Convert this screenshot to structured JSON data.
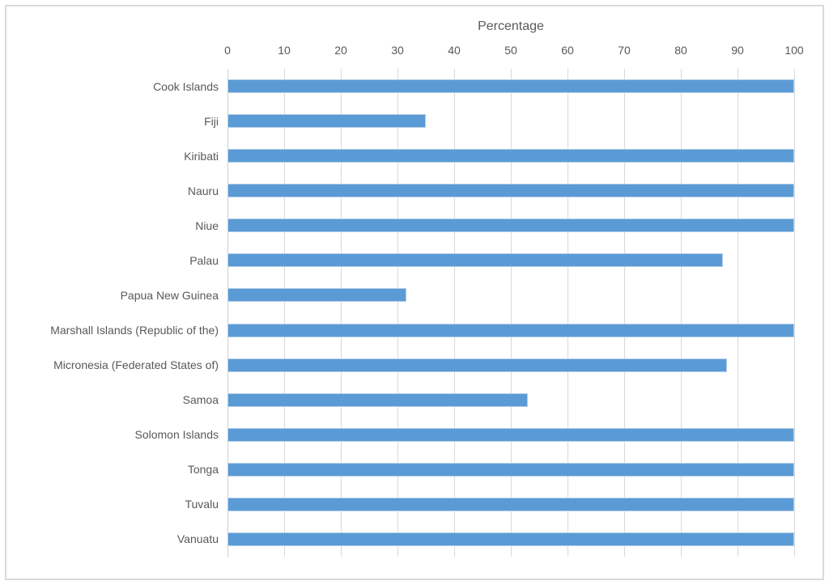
{
  "window": {
    "background_color": "#ffffff",
    "border_color": "#dadada"
  },
  "chart_data": {
    "type": "bar",
    "orientation": "horizontal",
    "title": "Percentage",
    "axis_position": "top",
    "categories": [
      "Cook Islands",
      "Fiji",
      "Kiribati",
      "Nauru",
      "Niue",
      "Palau",
      "Papua New Guinea",
      "Marshall Islands (Republic of the)",
      "Micronesia (Federated States of)",
      "Samoa",
      "Solomon Islands",
      "Tonga",
      "Tuvalu",
      "Vanuatu"
    ],
    "values": [
      100,
      35,
      100,
      100,
      100,
      87.4,
      31.6,
      100,
      88.1,
      53,
      100,
      100,
      100,
      100
    ],
    "xlabel": "Percentage",
    "ylabel": "",
    "xlim": [
      0,
      100
    ],
    "xticks": [
      0,
      10,
      20,
      30,
      40,
      50,
      60,
      70,
      80,
      90,
      100
    ],
    "grid": true,
    "legend": false,
    "bar_color": "#5B9BD5",
    "bar_border_color": "#b7d0ea",
    "gridline_color": "#d9d9d9",
    "text_color": "#595959"
  }
}
